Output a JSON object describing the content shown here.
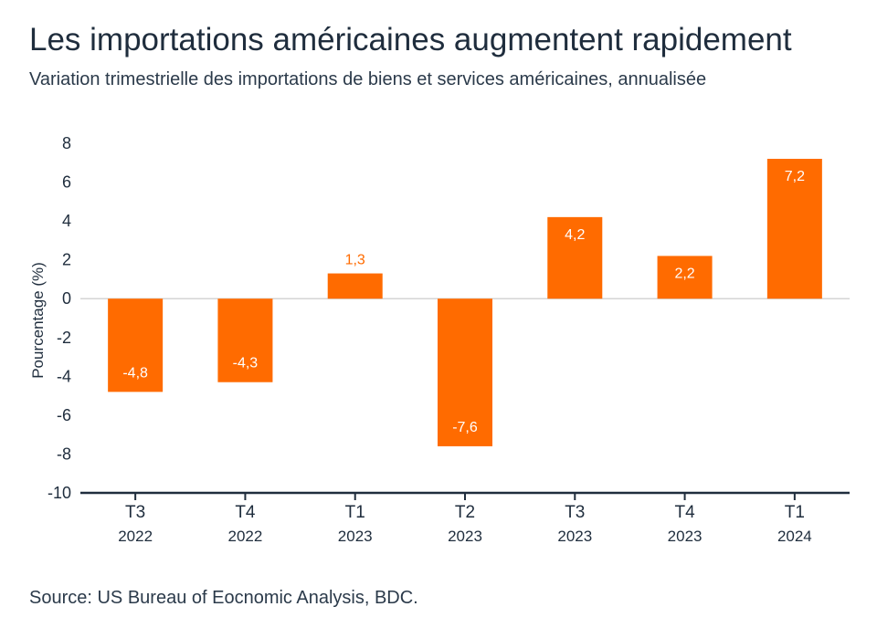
{
  "header": {
    "title": "Les importations américaines augmentent rapidement",
    "subtitle": "Variation trimestrielle des importations de biens et services américaines, annualisée"
  },
  "footer": {
    "source": "Source: US Bureau of Eocnomic Analysis, BDC."
  },
  "colors": {
    "bar": "#ff6b00",
    "label_inside": "#ffffff",
    "label_outside": "#ff6b00",
    "axis": "#1f2d3d",
    "zero_line": "#d4d4d4"
  },
  "chart_data": {
    "type": "bar",
    "title": "Les importations américaines augmentent rapidement",
    "subtitle": "Variation trimestrielle des importations de biens et services américaines, annualisée",
    "xlabel": "",
    "ylabel": "Pourcentage (%)",
    "ylim": [
      -10,
      8
    ],
    "yticks": [
      8,
      6,
      4,
      2,
      0,
      -2,
      -4,
      -6,
      -8,
      -10
    ],
    "categories": [
      {
        "quarter": "T3",
        "year": "2022"
      },
      {
        "quarter": "T4",
        "year": "2022"
      },
      {
        "quarter": "T1",
        "year": "2023"
      },
      {
        "quarter": "T2",
        "year": "2023"
      },
      {
        "quarter": "T3",
        "year": "2023"
      },
      {
        "quarter": "T4",
        "year": "2023"
      },
      {
        "quarter": "T1",
        "year": "2024"
      }
    ],
    "values": [
      -4.8,
      -4.3,
      1.3,
      -7.6,
      4.2,
      2.2,
      7.2
    ],
    "data_labels": [
      "-4,8",
      "-4,3",
      "1,3",
      "-7,6",
      "4,2",
      "2,2",
      "7,2"
    ],
    "grid": false,
    "legend": "none"
  }
}
